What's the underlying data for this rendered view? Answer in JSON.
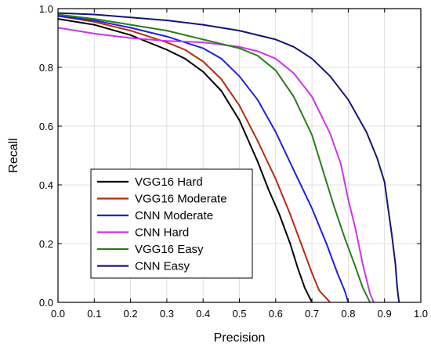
{
  "chart_data": {
    "type": "line",
    "title": "",
    "xlabel": "Precision",
    "ylabel": "Recall",
    "xlim": [
      0.0,
      1.0
    ],
    "ylim": [
      0.0,
      1.0
    ],
    "xticks": [
      "0.0",
      "0.1",
      "0.2",
      "0.3",
      "0.4",
      "0.5",
      "0.6",
      "0.7",
      "0.8",
      "0.9",
      "1.0"
    ],
    "yticks": [
      "0.0",
      "0.2",
      "0.4",
      "0.6",
      "0.8",
      "1.0"
    ],
    "grid": true,
    "legend_position": "bottom-left",
    "series": [
      {
        "name": "VGG16 Hard",
        "color": "#000000",
        "points": [
          [
            0.0,
            0.965
          ],
          [
            0.1,
            0.945
          ],
          [
            0.2,
            0.91
          ],
          [
            0.3,
            0.86
          ],
          [
            0.35,
            0.83
          ],
          [
            0.4,
            0.785
          ],
          [
            0.45,
            0.72
          ],
          [
            0.5,
            0.62
          ],
          [
            0.55,
            0.48
          ],
          [
            0.58,
            0.385
          ],
          [
            0.61,
            0.3
          ],
          [
            0.64,
            0.2
          ],
          [
            0.66,
            0.12
          ],
          [
            0.68,
            0.05
          ],
          [
            0.7,
            0.0
          ]
        ]
      },
      {
        "name": "VGG16 Moderate",
        "color": "#b82a0e",
        "points": [
          [
            0.0,
            0.975
          ],
          [
            0.1,
            0.955
          ],
          [
            0.2,
            0.925
          ],
          [
            0.3,
            0.885
          ],
          [
            0.35,
            0.86
          ],
          [
            0.4,
            0.82
          ],
          [
            0.45,
            0.76
          ],
          [
            0.5,
            0.67
          ],
          [
            0.55,
            0.55
          ],
          [
            0.6,
            0.42
          ],
          [
            0.64,
            0.3
          ],
          [
            0.67,
            0.2
          ],
          [
            0.7,
            0.1
          ],
          [
            0.72,
            0.04
          ],
          [
            0.75,
            0.0
          ]
        ]
      },
      {
        "name": "CNN Moderate",
        "color": "#1f1fe0",
        "points": [
          [
            0.0,
            0.975
          ],
          [
            0.1,
            0.96
          ],
          [
            0.2,
            0.935
          ],
          [
            0.3,
            0.905
          ],
          [
            0.4,
            0.865
          ],
          [
            0.45,
            0.83
          ],
          [
            0.5,
            0.77
          ],
          [
            0.55,
            0.69
          ],
          [
            0.6,
            0.58
          ],
          [
            0.65,
            0.45
          ],
          [
            0.7,
            0.32
          ],
          [
            0.74,
            0.2
          ],
          [
            0.77,
            0.1
          ],
          [
            0.79,
            0.04
          ],
          [
            0.8,
            0.0
          ]
        ]
      },
      {
        "name": "CNN Hard",
        "color": "#cc33ee",
        "points": [
          [
            0.0,
            0.935
          ],
          [
            0.1,
            0.915
          ],
          [
            0.2,
            0.9
          ],
          [
            0.3,
            0.89
          ],
          [
            0.4,
            0.885
          ],
          [
            0.5,
            0.87
          ],
          [
            0.55,
            0.855
          ],
          [
            0.6,
            0.83
          ],
          [
            0.65,
            0.78
          ],
          [
            0.7,
            0.7
          ],
          [
            0.75,
            0.575
          ],
          [
            0.78,
            0.47
          ],
          [
            0.8,
            0.35
          ],
          [
            0.82,
            0.25
          ],
          [
            0.84,
            0.13
          ],
          [
            0.86,
            0.03
          ],
          [
            0.87,
            0.0
          ]
        ]
      },
      {
        "name": "VGG16 Easy",
        "color": "#2a7e1a",
        "points": [
          [
            0.0,
            0.98
          ],
          [
            0.1,
            0.965
          ],
          [
            0.2,
            0.945
          ],
          [
            0.3,
            0.925
          ],
          [
            0.4,
            0.895
          ],
          [
            0.5,
            0.865
          ],
          [
            0.55,
            0.84
          ],
          [
            0.6,
            0.79
          ],
          [
            0.65,
            0.7
          ],
          [
            0.7,
            0.57
          ],
          [
            0.73,
            0.45
          ],
          [
            0.76,
            0.33
          ],
          [
            0.79,
            0.22
          ],
          [
            0.82,
            0.12
          ],
          [
            0.84,
            0.05
          ],
          [
            0.86,
            0.0
          ]
        ]
      },
      {
        "name": "CNN Easy",
        "color": "#141478",
        "points": [
          [
            0.0,
            0.985
          ],
          [
            0.1,
            0.98
          ],
          [
            0.2,
            0.97
          ],
          [
            0.3,
            0.96
          ],
          [
            0.4,
            0.945
          ],
          [
            0.5,
            0.925
          ],
          [
            0.6,
            0.895
          ],
          [
            0.65,
            0.87
          ],
          [
            0.7,
            0.83
          ],
          [
            0.75,
            0.77
          ],
          [
            0.8,
            0.69
          ],
          [
            0.85,
            0.58
          ],
          [
            0.88,
            0.49
          ],
          [
            0.9,
            0.41
          ],
          [
            0.91,
            0.32
          ],
          [
            0.92,
            0.23
          ],
          [
            0.93,
            0.13
          ],
          [
            0.935,
            0.05
          ],
          [
            0.94,
            0.0
          ]
        ]
      }
    ]
  }
}
